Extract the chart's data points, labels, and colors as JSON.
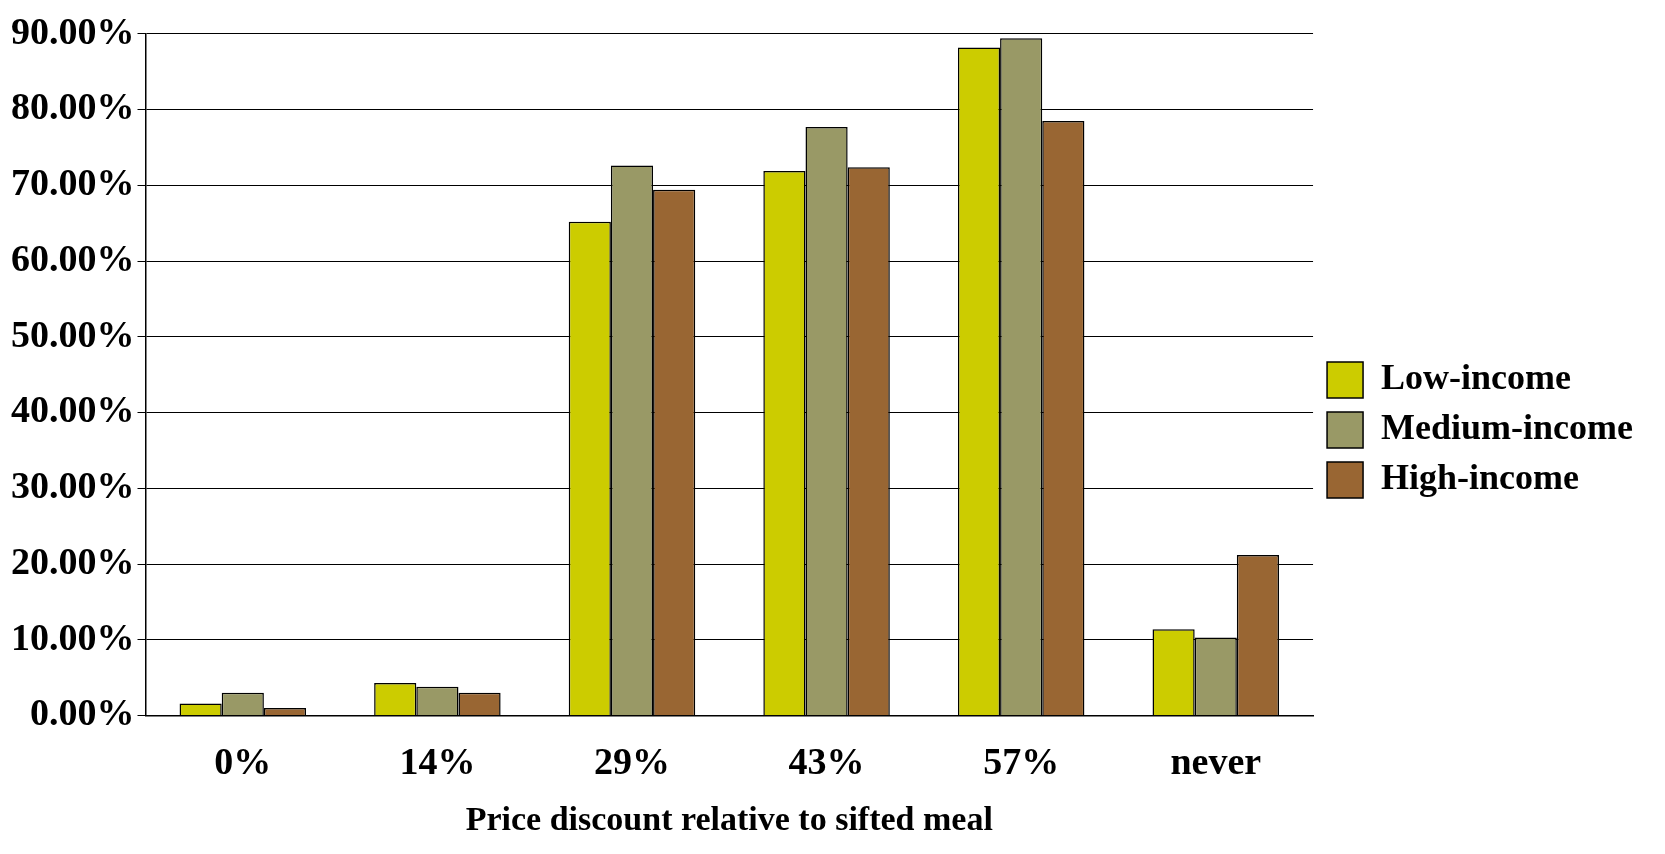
{
  "chart_data": {
    "type": "bar",
    "xlabel": "Price discount relative to sifted meal",
    "categories": [
      "0%",
      "14%",
      "29%",
      "43%",
      "57%",
      "never"
    ],
    "series": [
      {
        "name": "Low-income",
        "color": "#cccc00",
        "values": [
          1.6,
          4.3,
          65.2,
          71.9,
          88.2,
          11.4
        ]
      },
      {
        "name": "Medium-income",
        "color": "#999966",
        "values": [
          3.0,
          3.8,
          72.6,
          77.7,
          89.4,
          10.3
        ]
      },
      {
        "name": "High-income",
        "color": "#996633",
        "values": [
          1.0,
          3.0,
          69.4,
          72.4,
          78.5,
          21.2
        ]
      }
    ],
    "ylim": [
      0,
      90
    ],
    "yticks": [
      {
        "value": 0,
        "label": "0.00%"
      },
      {
        "value": 10,
        "label": "10.00%"
      },
      {
        "value": 20,
        "label": "20.00%"
      },
      {
        "value": 30,
        "label": "30.00%"
      },
      {
        "value": 40,
        "label": "40.00%"
      },
      {
        "value": 50,
        "label": "50.00%"
      },
      {
        "value": 60,
        "label": "60.00%"
      },
      {
        "value": 70,
        "label": "70.00%"
      },
      {
        "value": 80,
        "label": "80.00%"
      },
      {
        "value": 90,
        "label": "90.00%"
      }
    ],
    "grid": "y",
    "legend": "right"
  }
}
